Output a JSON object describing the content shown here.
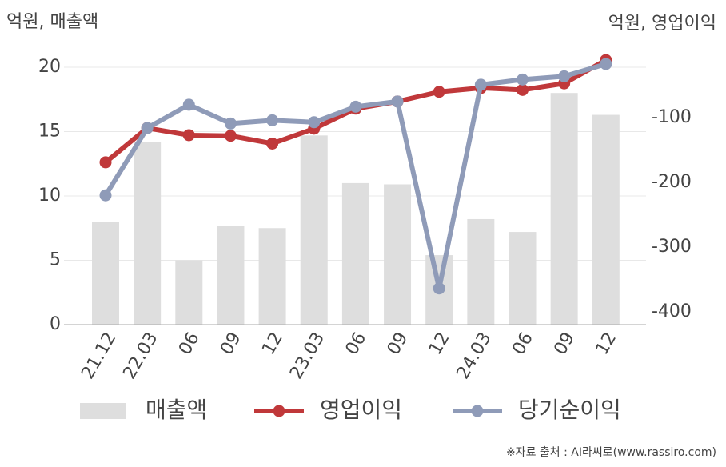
{
  "chart_data": {
    "type": "bar-line",
    "y_label": "억원, 매출액",
    "y2_label": "억원, 영업이익",
    "source": "※자료 출처 : AI라씨로(www.rassiro.com)",
    "categories": [
      "21.12",
      "22.03",
      "06",
      "09",
      "12",
      "23.03",
      "06",
      "09",
      "12",
      "24.03",
      "06",
      "09",
      "12"
    ],
    "series": [
      {
        "name": "매출액",
        "type": "bar",
        "color": "#dedede",
        "values": [
          8.0,
          14.2,
          5.0,
          7.7,
          7.5,
          14.7,
          11.0,
          10.9,
          5.4,
          8.2,
          7.2,
          18.0,
          16.3
        ]
      },
      {
        "name": "영업이익",
        "type": "line",
        "axis": "y2",
        "color": "#c0383a",
        "values": [
          -169,
          -116,
          -127,
          -128,
          -140,
          -117,
          -86,
          -75,
          -60,
          -54,
          -57,
          -47,
          -11
        ]
      },
      {
        "name": "당기순이익",
        "type": "line",
        "axis": "y2",
        "color": "#8f9bb8",
        "values": [
          -220,
          -116,
          -80,
          -109,
          -104,
          -107,
          -83,
          -75,
          -364,
          -49,
          -41,
          -36,
          -17
        ]
      }
    ],
    "ylim": [
      0,
      20
    ],
    "yticks": [
      0,
      5,
      10,
      15,
      20
    ],
    "y2lim": [
      -420,
      -22
    ],
    "y2ticks": [
      -100,
      -200,
      -300,
      -400
    ],
    "grid": true
  }
}
